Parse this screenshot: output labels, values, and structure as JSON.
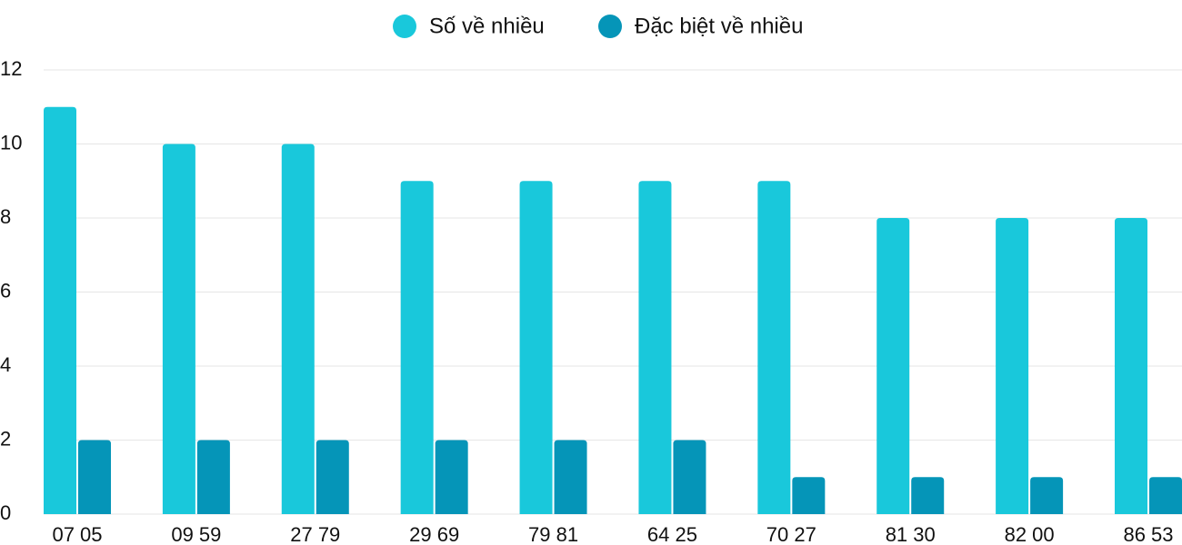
{
  "chart_data": {
    "type": "bar",
    "categories": [
      "07 05",
      "09 59",
      "27 79",
      "29 69",
      "79 81",
      "64 25",
      "70 27",
      "81 30",
      "82 00",
      "86 53"
    ],
    "series": [
      {
        "name": "Số về nhiều",
        "color": "#19c8db",
        "values": [
          11,
          10,
          10,
          9,
          9,
          9,
          9,
          8,
          8,
          8
        ]
      },
      {
        "name": "Đặc biệt về nhiều",
        "color": "#0595b8",
        "values": [
          2,
          2,
          2,
          2,
          2,
          2,
          1,
          1,
          1,
          1
        ]
      }
    ],
    "ylim": [
      0,
      12
    ],
    "yticks": [
      0,
      2,
      4,
      6,
      8,
      10,
      12
    ],
    "grid": true,
    "legend": "top"
  }
}
